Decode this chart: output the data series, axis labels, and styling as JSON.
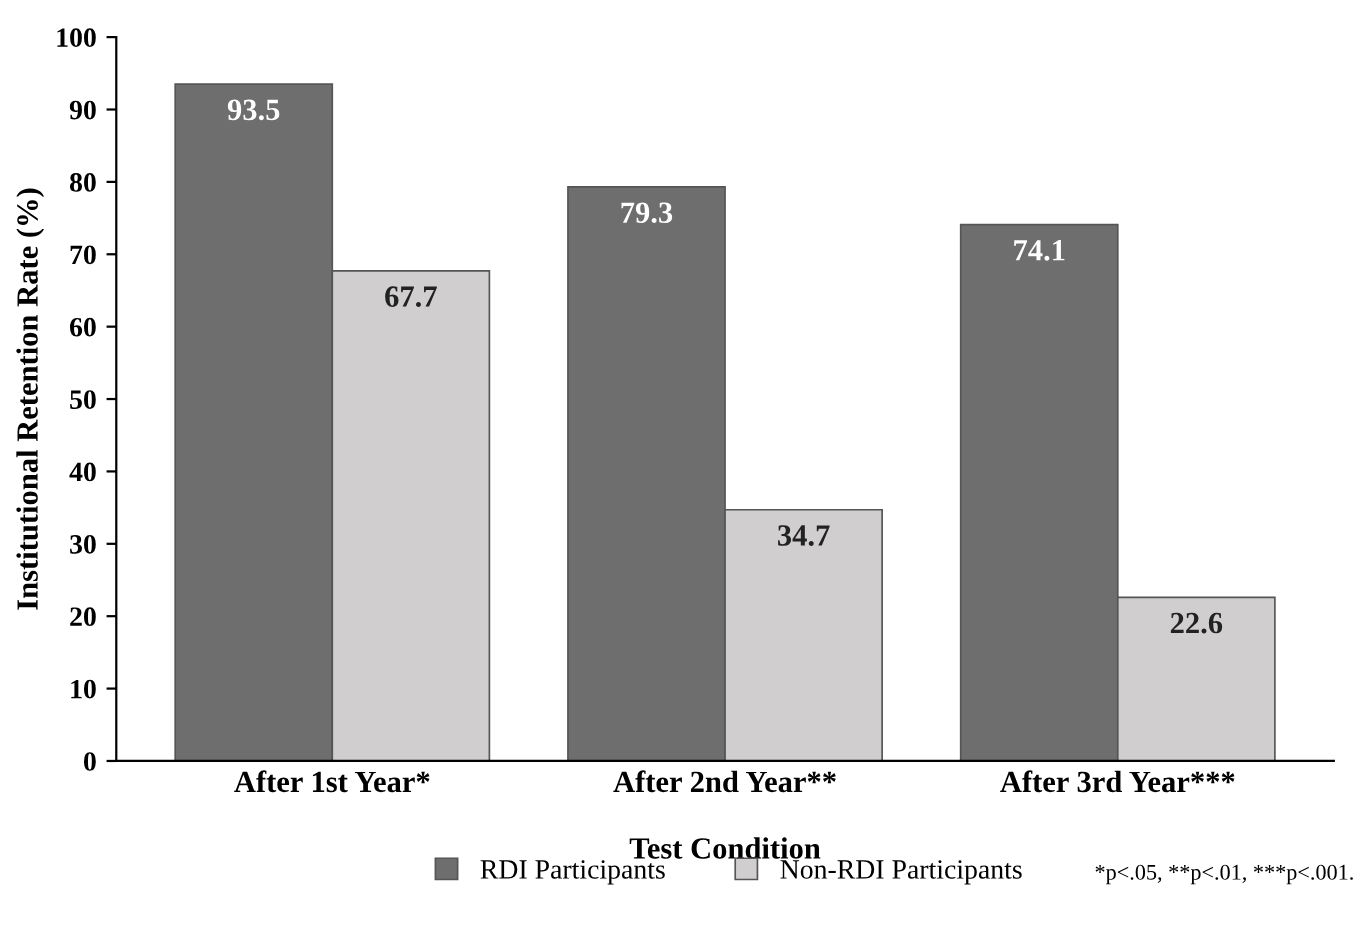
{
  "chart_data": {
    "type": "bar",
    "xlabel": "Test Condition",
    "ylabel": "Institutional Retention Rate (%)",
    "categories": [
      "After 1st Year*",
      "After 2nd Year**",
      "After 3rd Year***"
    ],
    "series": [
      {
        "name": "RDI Participants",
        "color": "#6e6e6e",
        "values": [
          93.5,
          79.3,
          74.1
        ]
      },
      {
        "name": "Non-RDI Participants",
        "color": "#d0cece",
        "values": [
          67.7,
          34.7,
          22.6
        ]
      }
    ],
    "ylim": [
      0,
      100
    ],
    "yticks": [
      0,
      10,
      20,
      30,
      40,
      50,
      60,
      70,
      80,
      90,
      100
    ],
    "data_labels": true,
    "grid": false,
    "legend": "bottom",
    "annotations": [
      "*p<.05, **p<.01, ***p<.001."
    ]
  }
}
